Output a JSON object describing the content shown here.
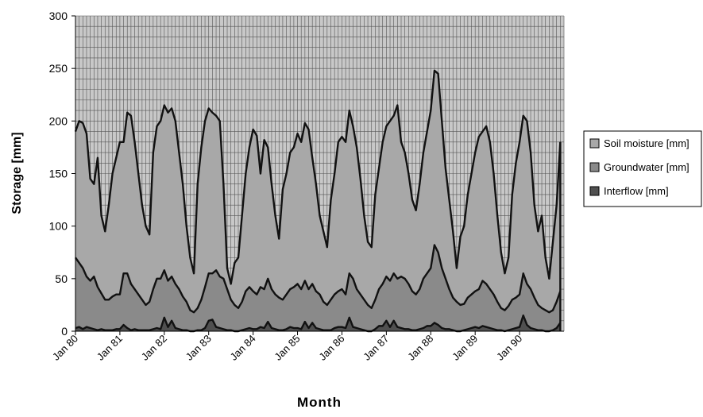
{
  "chart_data": {
    "type": "area",
    "title": "",
    "xlabel": "Month",
    "ylabel": "Storage  [mm]",
    "ylim": [
      0,
      300
    ],
    "yticks": [
      0,
      50,
      100,
      150,
      200,
      250,
      300
    ],
    "xlim": [
      "Jan 80",
      "Dec 90"
    ],
    "x_tick_labels": [
      "Jan 80",
      "Jan 81",
      "Jan 82",
      "Jan 83",
      "Jan 84",
      "Jan 85",
      "Jan 86",
      "Jan 87",
      "Jan 88",
      "Jan 89",
      "Jan 90"
    ],
    "grid": true,
    "stacked": false,
    "legend_position": "right",
    "series": [
      {
        "name": "Soil moisture  [mm]",
        "color": "#a8a8a8",
        "values": [
          190,
          200,
          198,
          188,
          145,
          140,
          165,
          110,
          95,
          120,
          150,
          165,
          180,
          180,
          208,
          205,
          180,
          150,
          120,
          100,
          92,
          170,
          195,
          200,
          215,
          208,
          212,
          200,
          170,
          140,
          100,
          70,
          55,
          140,
          175,
          200,
          212,
          208,
          205,
          200,
          140,
          60,
          45,
          65,
          70,
          110,
          150,
          175,
          192,
          186,
          150,
          182,
          175,
          140,
          110,
          88,
          135,
          150,
          170,
          175,
          188,
          180,
          198,
          192,
          165,
          140,
          110,
          95,
          80,
          125,
          150,
          180,
          185,
          180,
          210,
          195,
          175,
          145,
          110,
          85,
          80,
          130,
          155,
          180,
          195,
          200,
          205,
          215,
          180,
          170,
          150,
          125,
          115,
          140,
          170,
          190,
          210,
          248,
          245,
          200,
          155,
          125,
          95,
          60,
          90,
          100,
          130,
          150,
          170,
          185,
          190,
          195,
          180,
          150,
          110,
          75,
          55,
          70,
          130,
          160,
          180,
          205,
          200,
          170,
          120,
          95,
          110,
          70,
          50,
          85,
          120,
          180
        ]
      },
      {
        "name": "Groundwater [mm]",
        "color": "#8a8a8a",
        "values": [
          70,
          65,
          60,
          52,
          48,
          52,
          42,
          36,
          30,
          30,
          33,
          35,
          35,
          55,
          55,
          45,
          40,
          35,
          30,
          25,
          28,
          40,
          50,
          50,
          58,
          48,
          52,
          45,
          40,
          33,
          28,
          20,
          18,
          22,
          30,
          42,
          55,
          55,
          58,
          52,
          50,
          40,
          30,
          25,
          22,
          28,
          38,
          42,
          38,
          35,
          42,
          40,
          50,
          40,
          35,
          32,
          30,
          35,
          40,
          42,
          45,
          40,
          48,
          40,
          45,
          38,
          35,
          28,
          25,
          30,
          35,
          38,
          40,
          35,
          55,
          50,
          40,
          35,
          30,
          25,
          22,
          30,
          40,
          45,
          52,
          48,
          55,
          50,
          52,
          50,
          45,
          38,
          35,
          40,
          50,
          55,
          60,
          82,
          75,
          60,
          50,
          40,
          32,
          28,
          25,
          26,
          32,
          35,
          38,
          40,
          48,
          45,
          40,
          35,
          28,
          22,
          20,
          24,
          30,
          32,
          35,
          55,
          45,
          40,
          32,
          25,
          22,
          20,
          18,
          20,
          28,
          38
        ]
      },
      {
        "name": "Interflow   [mm]",
        "color": "#505050",
        "values": [
          3,
          4,
          2,
          4,
          3,
          2,
          1,
          2,
          1,
          1,
          1,
          2,
          2,
          6,
          3,
          1,
          2,
          1,
          1,
          1,
          1,
          2,
          3,
          2,
          13,
          4,
          10,
          3,
          2,
          1,
          1,
          0,
          0,
          1,
          1,
          3,
          10,
          11,
          4,
          3,
          2,
          1,
          1,
          0,
          0,
          1,
          2,
          3,
          2,
          2,
          4,
          3,
          9,
          3,
          2,
          1,
          1,
          2,
          4,
          3,
          3,
          2,
          9,
          3,
          8,
          3,
          2,
          1,
          1,
          1,
          3,
          4,
          4,
          3,
          13,
          4,
          3,
          2,
          1,
          0,
          0,
          2,
          5,
          5,
          10,
          4,
          10,
          4,
          3,
          2,
          2,
          1,
          1,
          2,
          3,
          5,
          5,
          8,
          6,
          3,
          2,
          2,
          1,
          0,
          0,
          1,
          2,
          3,
          4,
          3,
          5,
          4,
          3,
          2,
          1,
          1,
          0,
          1,
          2,
          3,
          4,
          15,
          6,
          3,
          2,
          1,
          1,
          0,
          0,
          1,
          3,
          8
        ]
      }
    ]
  }
}
